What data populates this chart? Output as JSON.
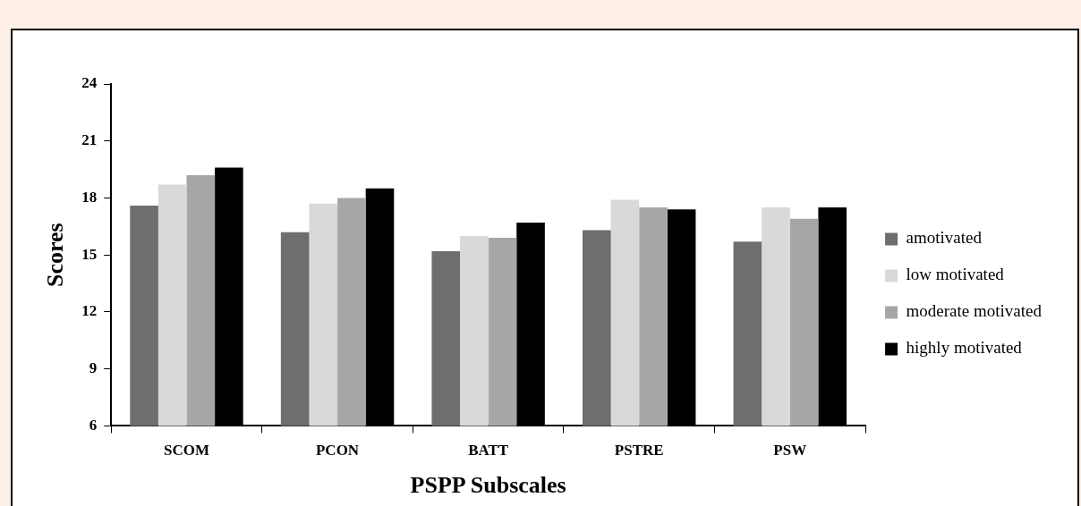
{
  "chart_data": {
    "type": "bar",
    "xlabel": "PSPP Subscales",
    "ylabel": "Scores",
    "categories": [
      "SCOM",
      "PCON",
      "BATT",
      "PSTRE",
      "PSW"
    ],
    "series": [
      {
        "name": "amotivated",
        "color": "#6e6e6e",
        "values": [
          17.6,
          16.2,
          15.2,
          16.3,
          15.7
        ]
      },
      {
        "name": "low motivated",
        "color": "#d9d9d9",
        "values": [
          18.7,
          17.7,
          16.0,
          17.9,
          17.5
        ]
      },
      {
        "name": "moderate motivated",
        "color": "#a6a6a6",
        "values": [
          19.2,
          18.0,
          15.9,
          17.5,
          16.9
        ]
      },
      {
        "name": "highly motivated",
        "color": "#000000",
        "values": [
          19.6,
          18.5,
          16.7,
          17.4,
          17.5
        ]
      }
    ],
    "ylim": [
      6,
      24
    ],
    "yticks": [
      6,
      9,
      12,
      15,
      18,
      21,
      24
    ],
    "grid": false,
    "legend": "right"
  }
}
